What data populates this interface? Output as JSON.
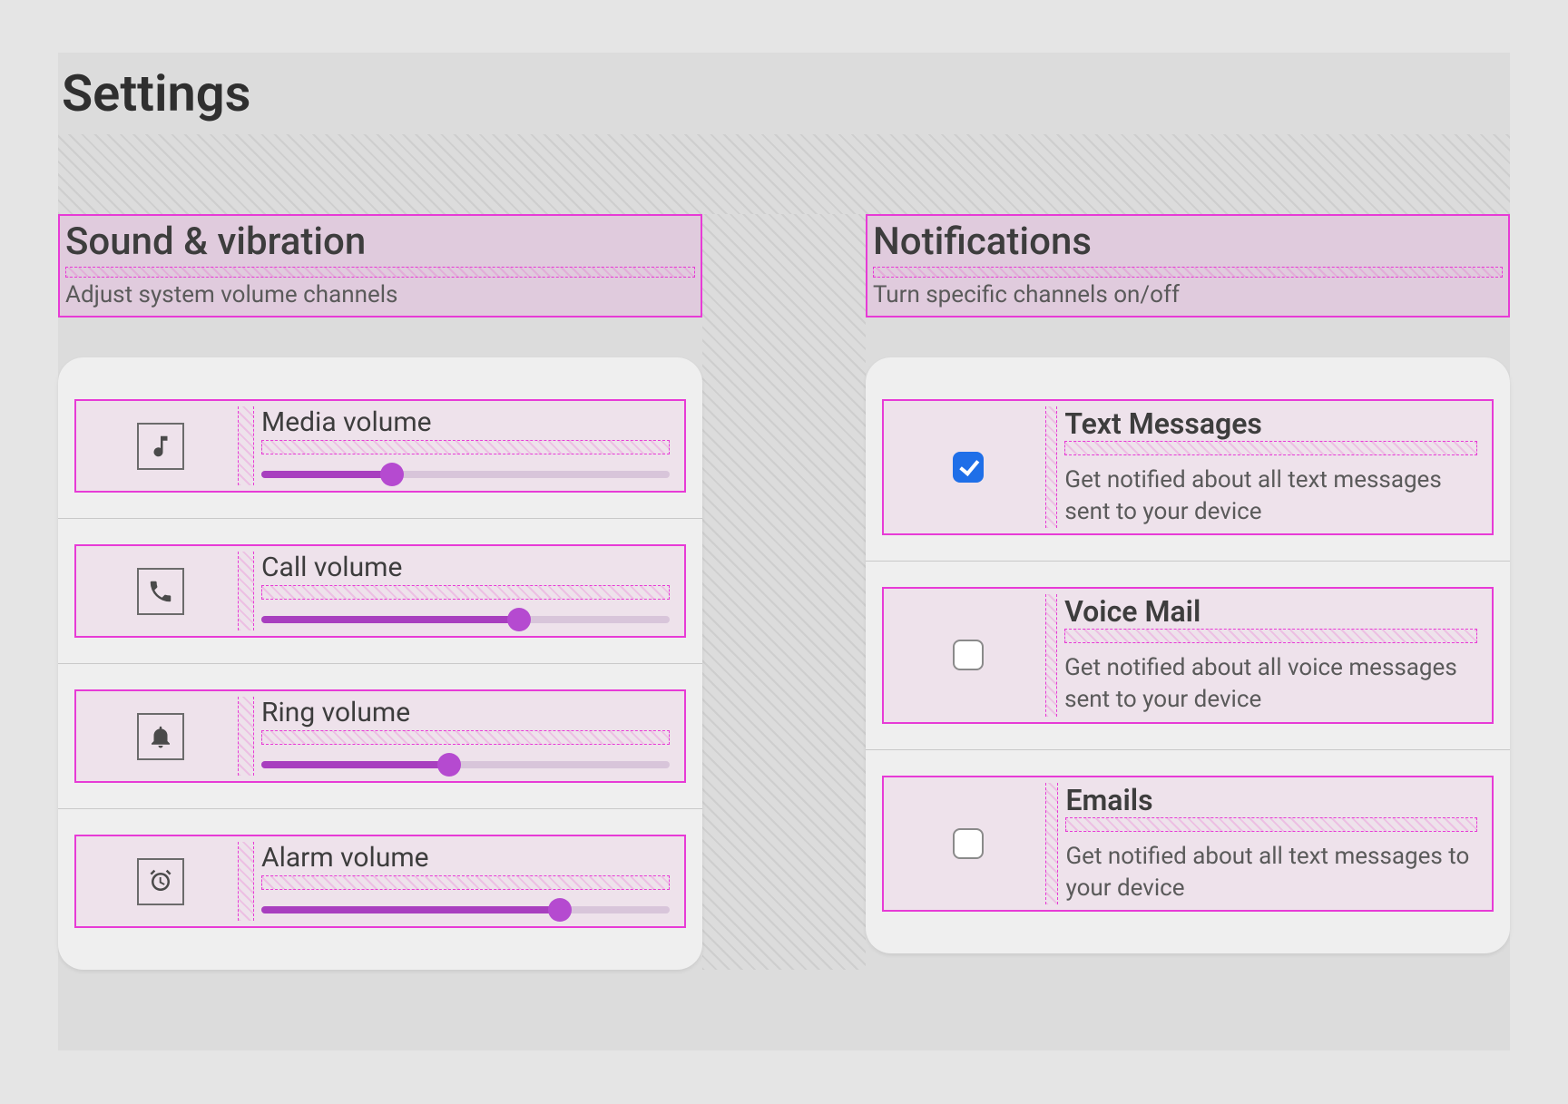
{
  "page": {
    "title": "Settings"
  },
  "colors": {
    "accent": "#a83fbf",
    "thumb": "#b54ad0",
    "overlay_border": "#e73bd6",
    "checkbox_checked": "#1f6fe8",
    "track": "#d8c5da",
    "card_bg": "#efefef",
    "page_bg": "#e5e5e5"
  },
  "sections": {
    "sound": {
      "title": "Sound & vibration",
      "subtitle": "Adjust system volume channels",
      "items": [
        {
          "icon": "music-note",
          "label": "Media volume",
          "value_pct": 32
        },
        {
          "icon": "phone",
          "label": "Call volume",
          "value_pct": 63
        },
        {
          "icon": "bell",
          "label": "Ring volume",
          "value_pct": 46
        },
        {
          "icon": "alarm",
          "label": "Alarm volume",
          "value_pct": 73
        }
      ]
    },
    "notifications": {
      "title": "Notifications",
      "subtitle": "Turn specific channels on/off",
      "items": [
        {
          "title": "Text Messages",
          "desc": "Get notified about all text messages sent to your device",
          "checked": true
        },
        {
          "title": "Voice Mail",
          "desc": "Get notified about all voice messages sent to your device",
          "checked": false
        },
        {
          "title": "Emails",
          "desc": "Get notified about all text messages to your device",
          "checked": false
        }
      ]
    }
  }
}
